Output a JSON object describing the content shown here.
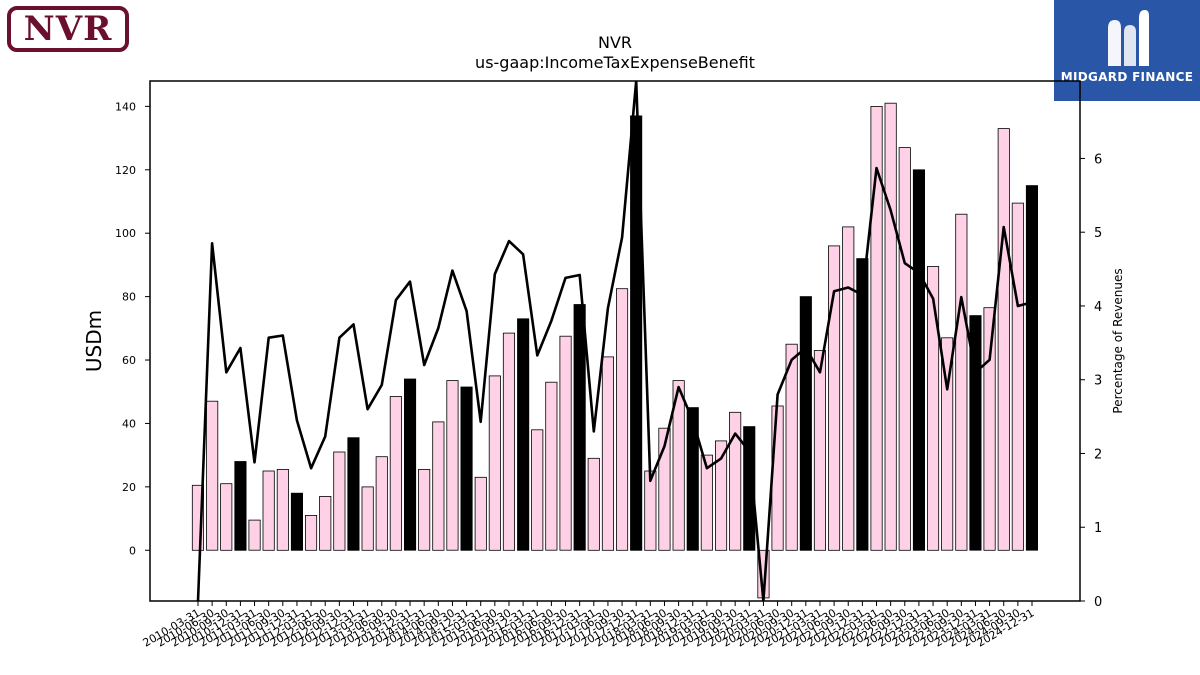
{
  "logos": {
    "left_text": "NVR",
    "right_text": "MIDGARD FINANCE",
    "left_color": "#6b0f2e",
    "right_color": "#2a56a8"
  },
  "chart_data": {
    "type": "bar",
    "title": "NVR",
    "subtitle": "us-gaap:IncomeTaxExpenseBenefit",
    "ylabel": "USDm",
    "y2label": "Percentage of Revenues",
    "ylim": [
      -16,
      148
    ],
    "y2lim": [
      0,
      7.05
    ],
    "yticks": [
      0,
      20,
      40,
      60,
      80,
      100,
      120,
      140
    ],
    "y2ticks": [
      0,
      1,
      2,
      3,
      4,
      5,
      6
    ],
    "colors": {
      "bar_fill": "#ffd1e6",
      "q4_fill": "#000000",
      "line": "#000000"
    },
    "categories": [
      "2010-03-31",
      "2010-06-30",
      "2010-09-30",
      "2010-12-31",
      "2011-03-31",
      "2011-06-30",
      "2011-09-30",
      "2011-12-31",
      "2012-03-31",
      "2012-06-30",
      "2012-09-30",
      "2012-12-31",
      "2013-03-31",
      "2013-06-30",
      "2013-09-30",
      "2013-12-31",
      "2014-03-31",
      "2014-06-30",
      "2014-09-30",
      "2014-12-31",
      "2015-03-31",
      "2015-06-30",
      "2015-09-30",
      "2015-12-31",
      "2016-03-31",
      "2016-06-30",
      "2016-09-30",
      "2016-12-31",
      "2017-03-31",
      "2017-06-30",
      "2017-09-30",
      "2017-12-31",
      "2018-03-31",
      "2018-06-30",
      "2018-09-30",
      "2018-12-31",
      "2019-03-31",
      "2019-06-30",
      "2019-09-30",
      "2019-12-31",
      "2020-03-31",
      "2020-06-30",
      "2020-09-30",
      "2020-12-31",
      "2021-03-31",
      "2021-06-30",
      "2021-09-30",
      "2021-12-31",
      "2022-03-31",
      "2022-06-30",
      "2022-09-30",
      "2022-12-31",
      "2023-03-31",
      "2023-06-30",
      "2023-09-30",
      "2023-12-31",
      "2024-03-31",
      "2024-06-30",
      "2024-09-30",
      "2024-12-31"
    ],
    "series": [
      {
        "values": [
          20.5,
          47,
          21,
          28,
          9.5,
          25,
          25.5,
          18,
          11,
          17,
          31,
          35.5,
          20,
          29.5,
          48.5,
          54,
          25.5,
          40.5,
          53.5,
          51.5,
          23,
          55,
          68.5,
          73,
          38,
          53,
          67.5,
          77.5,
          29,
          61,
          82.5,
          137,
          25,
          38.5,
          53.5,
          45,
          30,
          34.5,
          43.5,
          39,
          -15,
          45.5,
          65,
          80,
          63,
          96,
          102,
          92,
          140,
          141,
          127,
          120,
          89.5,
          67,
          106,
          74,
          76.5,
          133,
          109.5,
          115
        ]
      },
      {
        "type": "line",
        "values": [
          0,
          4.85,
          3.1,
          3.43,
          1.88,
          3.57,
          3.6,
          2.45,
          1.8,
          2.23,
          3.57,
          3.75,
          2.6,
          2.93,
          4.08,
          4.33,
          3.2,
          3.7,
          4.48,
          3.93,
          2.43,
          4.43,
          4.88,
          4.7,
          3.33,
          3.8,
          4.38,
          4.42,
          2.3,
          3.97,
          4.93,
          7.05,
          1.63,
          2.1,
          2.9,
          2.45,
          1.8,
          1.93,
          2.27,
          2.03,
          0,
          2.8,
          3.27,
          3.43,
          3.1,
          4.2,
          4.25,
          4.15,
          5.87,
          5.3,
          4.58,
          4.45,
          4.1,
          2.87,
          4.12,
          3.1,
          3.27,
          5.07,
          4.0,
          4.05
        ]
      }
    ],
    "q4_highlight": true
  }
}
